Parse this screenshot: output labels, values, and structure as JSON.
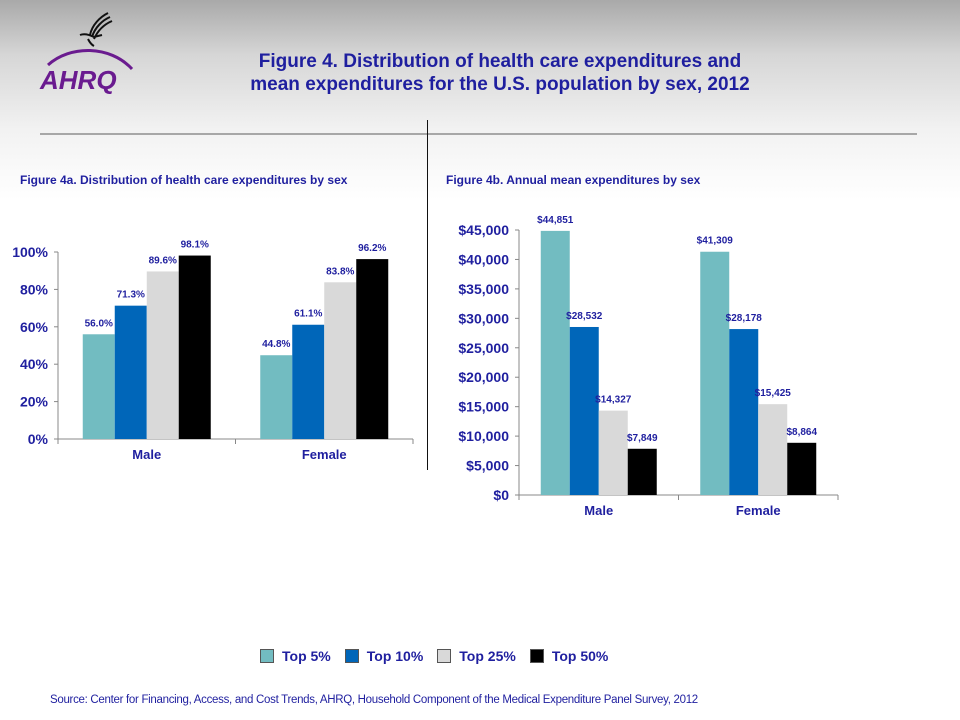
{
  "header": {
    "title_line1": "Figure 4. Distribution of health care expenditures and",
    "title_line2": "mean expenditures for the U.S. population by sex, 2012",
    "logo_text": "AHRQ",
    "logo_icons": [
      "hhs-eagle-icon",
      "ahrq-logo"
    ]
  },
  "legend": {
    "items": [
      {
        "label": "Top 5%",
        "color": "#72bcc1"
      },
      {
        "label": "Top 10%",
        "color": "#0066b9"
      },
      {
        "label": "Top 25%",
        "color": "#d9d9d9"
      },
      {
        "label": "Top 50%",
        "color": "#000000"
      }
    ]
  },
  "source": "Source: Center for Financing, Access, and Cost Trends, AHRQ, Household Component of the Medical Expenditure Panel Survey, 2012",
  "colors": {
    "text": "#1f1f9f",
    "axis": "#888888"
  },
  "chart_data": [
    {
      "type": "bar",
      "title": "Figure 4a. Distribution  of health care expenditures by sex",
      "categories": [
        "Male",
        "Female"
      ],
      "series": [
        {
          "name": "Top 5%",
          "values": [
            56.0,
            44.8
          ],
          "labels": [
            "56.0%",
            "44.8%"
          ]
        },
        {
          "name": "Top 10%",
          "values": [
            71.3,
            61.1
          ],
          "labels": [
            "71.3%",
            "61.1%"
          ]
        },
        {
          "name": "Top 25%",
          "values": [
            89.6,
            83.8
          ],
          "labels": [
            "89.6%",
            "83.8%"
          ]
        },
        {
          "name": "Top 50%",
          "values": [
            98.1,
            96.2
          ],
          "labels": [
            "98.1%",
            "96.2%"
          ]
        }
      ],
      "xlabel": "",
      "ylabel": "",
      "ylim": [
        0,
        100
      ],
      "yticks": [
        0,
        20,
        40,
        60,
        80,
        100
      ],
      "ytick_labels": [
        "0%",
        "20%",
        "40%",
        "60%",
        "80%",
        "100%"
      ],
      "grid": false,
      "legend": "bottom"
    },
    {
      "type": "bar",
      "title": "Figure 4b. Annual mean expenditures by sex",
      "categories": [
        "Male",
        "Female"
      ],
      "series": [
        {
          "name": "Top 5%",
          "values": [
            44851,
            41309
          ],
          "labels": [
            "$44,851",
            "$41,309"
          ]
        },
        {
          "name": "Top 10%",
          "values": [
            28532,
            28178
          ],
          "labels": [
            "$28,532",
            "$28,178"
          ]
        },
        {
          "name": "Top 25%",
          "values": [
            14327,
            15425
          ],
          "labels": [
            "$14,327",
            "$15,425"
          ]
        },
        {
          "name": "Top 50%",
          "values": [
            7849,
            8864
          ],
          "labels": [
            "$7,849",
            "$8,864"
          ]
        }
      ],
      "xlabel": "",
      "ylabel": "",
      "ylim": [
        0,
        45000
      ],
      "yticks": [
        0,
        5000,
        10000,
        15000,
        20000,
        25000,
        30000,
        35000,
        40000,
        45000
      ],
      "ytick_labels": [
        "$0",
        "$5,000",
        "$10,000",
        "$15,000",
        "$20,000",
        "$25,000",
        "$30,000",
        "$35,000",
        "$40,000",
        "$45,000"
      ],
      "grid": false,
      "legend": "bottom"
    }
  ]
}
